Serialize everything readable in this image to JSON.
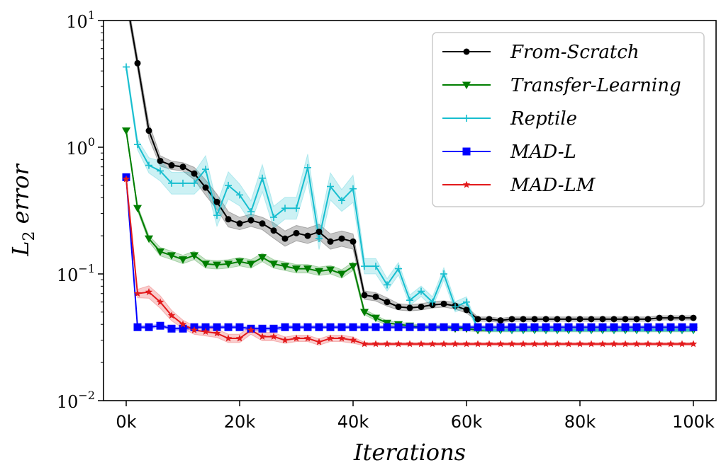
{
  "chart_data": {
    "type": "line",
    "title": "",
    "xlabel": "Iterations",
    "ylabel": "L2 error",
    "ylabel_base": "L",
    "ylabel_sub": "2",
    "ylabel_rest": " error",
    "xscale": "linear",
    "yscale": "log",
    "xlim": [
      -4000,
      104000
    ],
    "ylim": [
      0.01,
      10
    ],
    "xticks": [
      0,
      20000,
      40000,
      60000,
      80000,
      100000
    ],
    "xtick_labels": [
      "0k",
      "20k",
      "40k",
      "60k",
      "80k",
      "100k"
    ],
    "yticks": [
      0.01,
      0.1,
      1,
      10
    ],
    "ytick_labels": [
      {
        "base": "10",
        "exp": "−2"
      },
      {
        "base": "10",
        "exp": "−1"
      },
      {
        "base": "10",
        "exp": "0"
      },
      {
        "base": "10",
        "exp": "1"
      }
    ],
    "grid": false,
    "legend_position": "top-right",
    "x": [
      0,
      2000,
      4000,
      6000,
      8000,
      10000,
      12000,
      14000,
      16000,
      18000,
      20000,
      22000,
      24000,
      26000,
      28000,
      30000,
      32000,
      34000,
      36000,
      38000,
      40000,
      42000,
      44000,
      46000,
      48000,
      50000,
      52000,
      54000,
      56000,
      58000,
      60000,
      62000,
      64000,
      66000,
      68000,
      70000,
      72000,
      74000,
      76000,
      78000,
      80000,
      82000,
      84000,
      86000,
      88000,
      90000,
      92000,
      94000,
      96000,
      98000,
      100000
    ],
    "series": [
      {
        "name": "From-Scratch",
        "color": "#000000",
        "marker": "circle",
        "values": [
          15,
          4.6,
          1.35,
          0.78,
          0.72,
          0.7,
          0.62,
          0.48,
          0.37,
          0.27,
          0.25,
          0.265,
          0.25,
          0.22,
          0.19,
          0.21,
          0.2,
          0.215,
          0.18,
          0.19,
          0.18,
          0.068,
          0.066,
          0.06,
          0.055,
          0.054,
          0.055,
          0.057,
          0.058,
          0.056,
          0.052,
          0.044,
          0.044,
          0.043,
          0.044,
          0.044,
          0.044,
          0.044,
          0.044,
          0.044,
          0.044,
          0.044,
          0.044,
          0.044,
          0.044,
          0.044,
          0.044,
          0.045,
          0.045,
          0.045,
          0.045
        ],
        "band": [
          0.12,
          0.12,
          0.15,
          0.1,
          0.08,
          0.08,
          0.12,
          0.15,
          0.15,
          0.15,
          0.12,
          0.12,
          0.12,
          0.15,
          0.15,
          0.15,
          0.15,
          0.15,
          0.15,
          0.15,
          0.15,
          0.08,
          0.08,
          0.08,
          0.06,
          0.06,
          0.06,
          0.06,
          0.06,
          0.06,
          0.06,
          0.04,
          0.04,
          0.04,
          0.04,
          0.04,
          0.04,
          0.04,
          0.04,
          0.04,
          0.04,
          0.04,
          0.04,
          0.04,
          0.04,
          0.04,
          0.04,
          0.04,
          0.04,
          0.04,
          0.04
        ]
      },
      {
        "name": "Transfer-Learning",
        "color": "#007f00",
        "marker": "triangle-down",
        "values": [
          1.35,
          0.33,
          0.19,
          0.15,
          0.14,
          0.13,
          0.14,
          0.12,
          0.118,
          0.12,
          0.125,
          0.12,
          0.135,
          0.12,
          0.115,
          0.11,
          0.11,
          0.105,
          0.108,
          0.1,
          0.115,
          0.05,
          0.045,
          0.041,
          0.04,
          0.039,
          0.038,
          0.038,
          0.038,
          0.037,
          0.037,
          0.036,
          0.036,
          0.036,
          0.036,
          0.036,
          0.036,
          0.036,
          0.036,
          0.036,
          0.036,
          0.036,
          0.036,
          0.036,
          0.036,
          0.036,
          0.036,
          0.036,
          0.036,
          0.036,
          0.036
        ],
        "band": [
          0.04,
          0.05,
          0.06,
          0.08,
          0.08,
          0.08,
          0.08,
          0.08,
          0.08,
          0.08,
          0.08,
          0.08,
          0.08,
          0.08,
          0.08,
          0.08,
          0.08,
          0.08,
          0.08,
          0.08,
          0.08,
          0.05,
          0.05,
          0.04,
          0.04,
          0.04,
          0.04,
          0.04,
          0.04,
          0.04,
          0.04,
          0.03,
          0.03,
          0.03,
          0.03,
          0.03,
          0.03,
          0.03,
          0.03,
          0.03,
          0.03,
          0.03,
          0.03,
          0.03,
          0.03,
          0.03,
          0.03,
          0.03,
          0.03,
          0.03,
          0.03
        ]
      },
      {
        "name": "Reptile",
        "color": "#17becf",
        "marker": "plus",
        "values": [
          4.3,
          1.05,
          0.72,
          0.65,
          0.52,
          0.52,
          0.52,
          0.67,
          0.29,
          0.5,
          0.42,
          0.31,
          0.57,
          0.28,
          0.33,
          0.33,
          0.69,
          0.19,
          0.49,
          0.38,
          0.47,
          0.115,
          0.115,
          0.082,
          0.11,
          0.062,
          0.073,
          0.06,
          0.1,
          0.055,
          0.06,
          0.037,
          0.036,
          0.036,
          0.036,
          0.036,
          0.036,
          0.036,
          0.036,
          0.036,
          0.036,
          0.036,
          0.036,
          0.036,
          0.036,
          0.036,
          0.036,
          0.036,
          0.036,
          0.036,
          0.036
        ],
        "band": [
          0.08,
          0.1,
          0.15,
          0.2,
          0.22,
          0.22,
          0.22,
          0.28,
          0.22,
          0.28,
          0.22,
          0.22,
          0.28,
          0.22,
          0.22,
          0.22,
          0.28,
          0.22,
          0.28,
          0.22,
          0.28,
          0.15,
          0.15,
          0.12,
          0.12,
          0.1,
          0.1,
          0.1,
          0.12,
          0.1,
          0.1,
          0.03,
          0.03,
          0.03,
          0.03,
          0.03,
          0.03,
          0.03,
          0.03,
          0.03,
          0.03,
          0.03,
          0.03,
          0.03,
          0.03,
          0.03,
          0.03,
          0.03,
          0.03,
          0.03,
          0.03
        ]
      },
      {
        "name": "MAD-L",
        "color": "#0000ff",
        "marker": "square",
        "values": [
          0.58,
          0.038,
          0.038,
          0.039,
          0.037,
          0.037,
          0.038,
          0.038,
          0.038,
          0.038,
          0.038,
          0.037,
          0.037,
          0.037,
          0.038,
          0.038,
          0.038,
          0.038,
          0.038,
          0.038,
          0.038,
          0.038,
          0.038,
          0.038,
          0.038,
          0.038,
          0.038,
          0.038,
          0.038,
          0.038,
          0.038,
          0.038,
          0.038,
          0.038,
          0.038,
          0.038,
          0.038,
          0.038,
          0.038,
          0.038,
          0.038,
          0.038,
          0.038,
          0.038,
          0.038,
          0.038,
          0.038,
          0.038,
          0.038,
          0.038,
          0.038
        ],
        "band": [
          0.03,
          0.03,
          0.03,
          0.03,
          0.03,
          0.03,
          0.03,
          0.03,
          0.03,
          0.03,
          0.03,
          0.03,
          0.03,
          0.03,
          0.03,
          0.03,
          0.03,
          0.03,
          0.03,
          0.03,
          0.03,
          0.03,
          0.03,
          0.03,
          0.03,
          0.03,
          0.03,
          0.03,
          0.03,
          0.03,
          0.03,
          0.03,
          0.03,
          0.03,
          0.03,
          0.03,
          0.03,
          0.03,
          0.03,
          0.03,
          0.03,
          0.03,
          0.03,
          0.03,
          0.03,
          0.03,
          0.03,
          0.03,
          0.03,
          0.03,
          0.03
        ]
      },
      {
        "name": "MAD-LM",
        "color": "#e31a1c",
        "marker": "star",
        "values": [
          0.56,
          0.07,
          0.072,
          0.06,
          0.047,
          0.04,
          0.036,
          0.035,
          0.034,
          0.031,
          0.031,
          0.036,
          0.032,
          0.032,
          0.03,
          0.031,
          0.031,
          0.029,
          0.031,
          0.031,
          0.03,
          0.028,
          0.028,
          0.028,
          0.028,
          0.028,
          0.028,
          0.028,
          0.028,
          0.028,
          0.028,
          0.028,
          0.028,
          0.028,
          0.028,
          0.028,
          0.028,
          0.028,
          0.028,
          0.028,
          0.028,
          0.028,
          0.028,
          0.028,
          0.028,
          0.028,
          0.028,
          0.028,
          0.028,
          0.028,
          0.028
        ],
        "band": [
          0.05,
          0.08,
          0.12,
          0.12,
          0.1,
          0.08,
          0.08,
          0.08,
          0.08,
          0.08,
          0.08,
          0.08,
          0.08,
          0.08,
          0.06,
          0.06,
          0.06,
          0.06,
          0.06,
          0.06,
          0.06,
          0.03,
          0.03,
          0.03,
          0.03,
          0.03,
          0.03,
          0.03,
          0.03,
          0.03,
          0.03,
          0.03,
          0.03,
          0.03,
          0.03,
          0.03,
          0.03,
          0.03,
          0.03,
          0.03,
          0.03,
          0.03,
          0.03,
          0.03,
          0.03,
          0.03,
          0.03,
          0.03,
          0.03,
          0.03,
          0.03
        ]
      }
    ]
  }
}
